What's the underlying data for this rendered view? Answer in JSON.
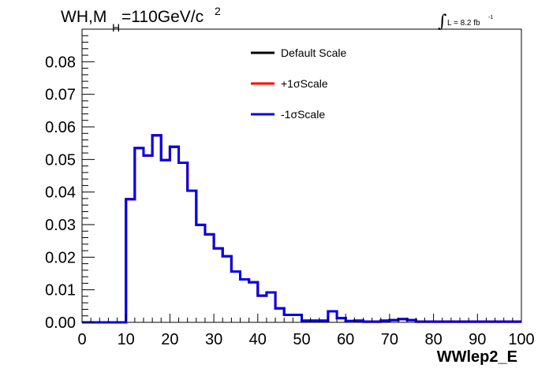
{
  "chart_data": {
    "type": "line",
    "style": "step-histogram",
    "title_main": "WH,M",
    "title_sub": "H",
    "title_value": "=110GeV/c",
    "title_sup": "2",
    "lumi_symbol": "∫",
    "lumi_text": "L = 8.2 fb",
    "lumi_sup": "-1",
    "xlabel": "WWlep2_E",
    "ylabel": "",
    "xlim": [
      0,
      100
    ],
    "ylim": [
      0,
      0.09
    ],
    "x_ticks": [
      "0",
      "10",
      "20",
      "30",
      "40",
      "50",
      "60",
      "70",
      "80",
      "90",
      "100"
    ],
    "y_ticks": [
      "0.00",
      "0.01",
      "0.02",
      "0.03",
      "0.04",
      "0.05",
      "0.06",
      "0.07",
      "0.08"
    ],
    "grid": false,
    "legend_position": "top-center",
    "bin_edges": [
      0,
      2,
      4,
      6,
      8,
      10,
      12,
      14,
      16,
      18,
      20,
      22,
      24,
      26,
      28,
      30,
      32,
      34,
      36,
      38,
      40,
      42,
      44,
      46,
      48,
      50,
      52,
      54,
      56,
      58,
      60,
      62,
      64,
      66,
      68,
      70,
      72,
      74,
      76,
      78,
      80,
      82,
      84,
      86,
      88,
      90,
      92,
      94,
      96,
      98,
      100
    ],
    "series": [
      {
        "name": "Default Scale",
        "color": "#000000",
        "values": [
          0,
          0,
          0,
          0,
          0,
          0.0378,
          0.0535,
          0.0512,
          0.0574,
          0.0498,
          0.0539,
          0.049,
          0.0404,
          0.0299,
          0.027,
          0.0227,
          0.0203,
          0.0156,
          0.0132,
          0.0123,
          0.0082,
          0.0092,
          0.0043,
          0.0023,
          0.0023,
          0.0005,
          0.0005,
          0.0005,
          0.0034,
          0.0013,
          0.0004,
          0.0005,
          0.0002,
          0.0002,
          0.0005,
          0.0007,
          0.001,
          0.0007,
          0.0002,
          0.0002,
          0.0002,
          0.0002,
          0.0002,
          0.0002,
          0.0002,
          0.0002,
          0.0002,
          0.0002,
          0.0002,
          0.0002
        ]
      },
      {
        "name": "+1σScale",
        "color": "#ff0000",
        "values": [
          0,
          0,
          0,
          0,
          0,
          0.0378,
          0.0535,
          0.0512,
          0.0574,
          0.0498,
          0.0539,
          0.049,
          0.0404,
          0.0299,
          0.027,
          0.0227,
          0.0203,
          0.0156,
          0.0132,
          0.0123,
          0.0082,
          0.0092,
          0.0043,
          0.0023,
          0.0023,
          0.0005,
          0.0005,
          0.0005,
          0.0034,
          0.0013,
          0.0004,
          0.0005,
          0.0002,
          0.0002,
          0.0005,
          0.0007,
          0.001,
          0.0007,
          0.0002,
          0.0002,
          0.0002,
          0.0002,
          0.0002,
          0.0002,
          0.0002,
          0.0002,
          0.0002,
          0.0002,
          0.0002,
          0.0002
        ]
      },
      {
        "name": "-1σScale",
        "color": "#0000ee",
        "values": [
          0,
          0,
          0,
          0,
          0,
          0.0378,
          0.0535,
          0.0512,
          0.0574,
          0.0498,
          0.0539,
          0.049,
          0.0404,
          0.0299,
          0.027,
          0.0227,
          0.0203,
          0.0156,
          0.0132,
          0.0123,
          0.0082,
          0.0092,
          0.0043,
          0.0023,
          0.0023,
          0.0005,
          0.0005,
          0.0005,
          0.0034,
          0.0013,
          0.0004,
          0.0005,
          0.0002,
          0.0002,
          0.0005,
          0.0007,
          0.001,
          0.0007,
          0.0002,
          0.0002,
          0.0002,
          0.0002,
          0.0002,
          0.0002,
          0.0002,
          0.0002,
          0.0002,
          0.0002,
          0.0002,
          0.0002
        ]
      }
    ]
  }
}
